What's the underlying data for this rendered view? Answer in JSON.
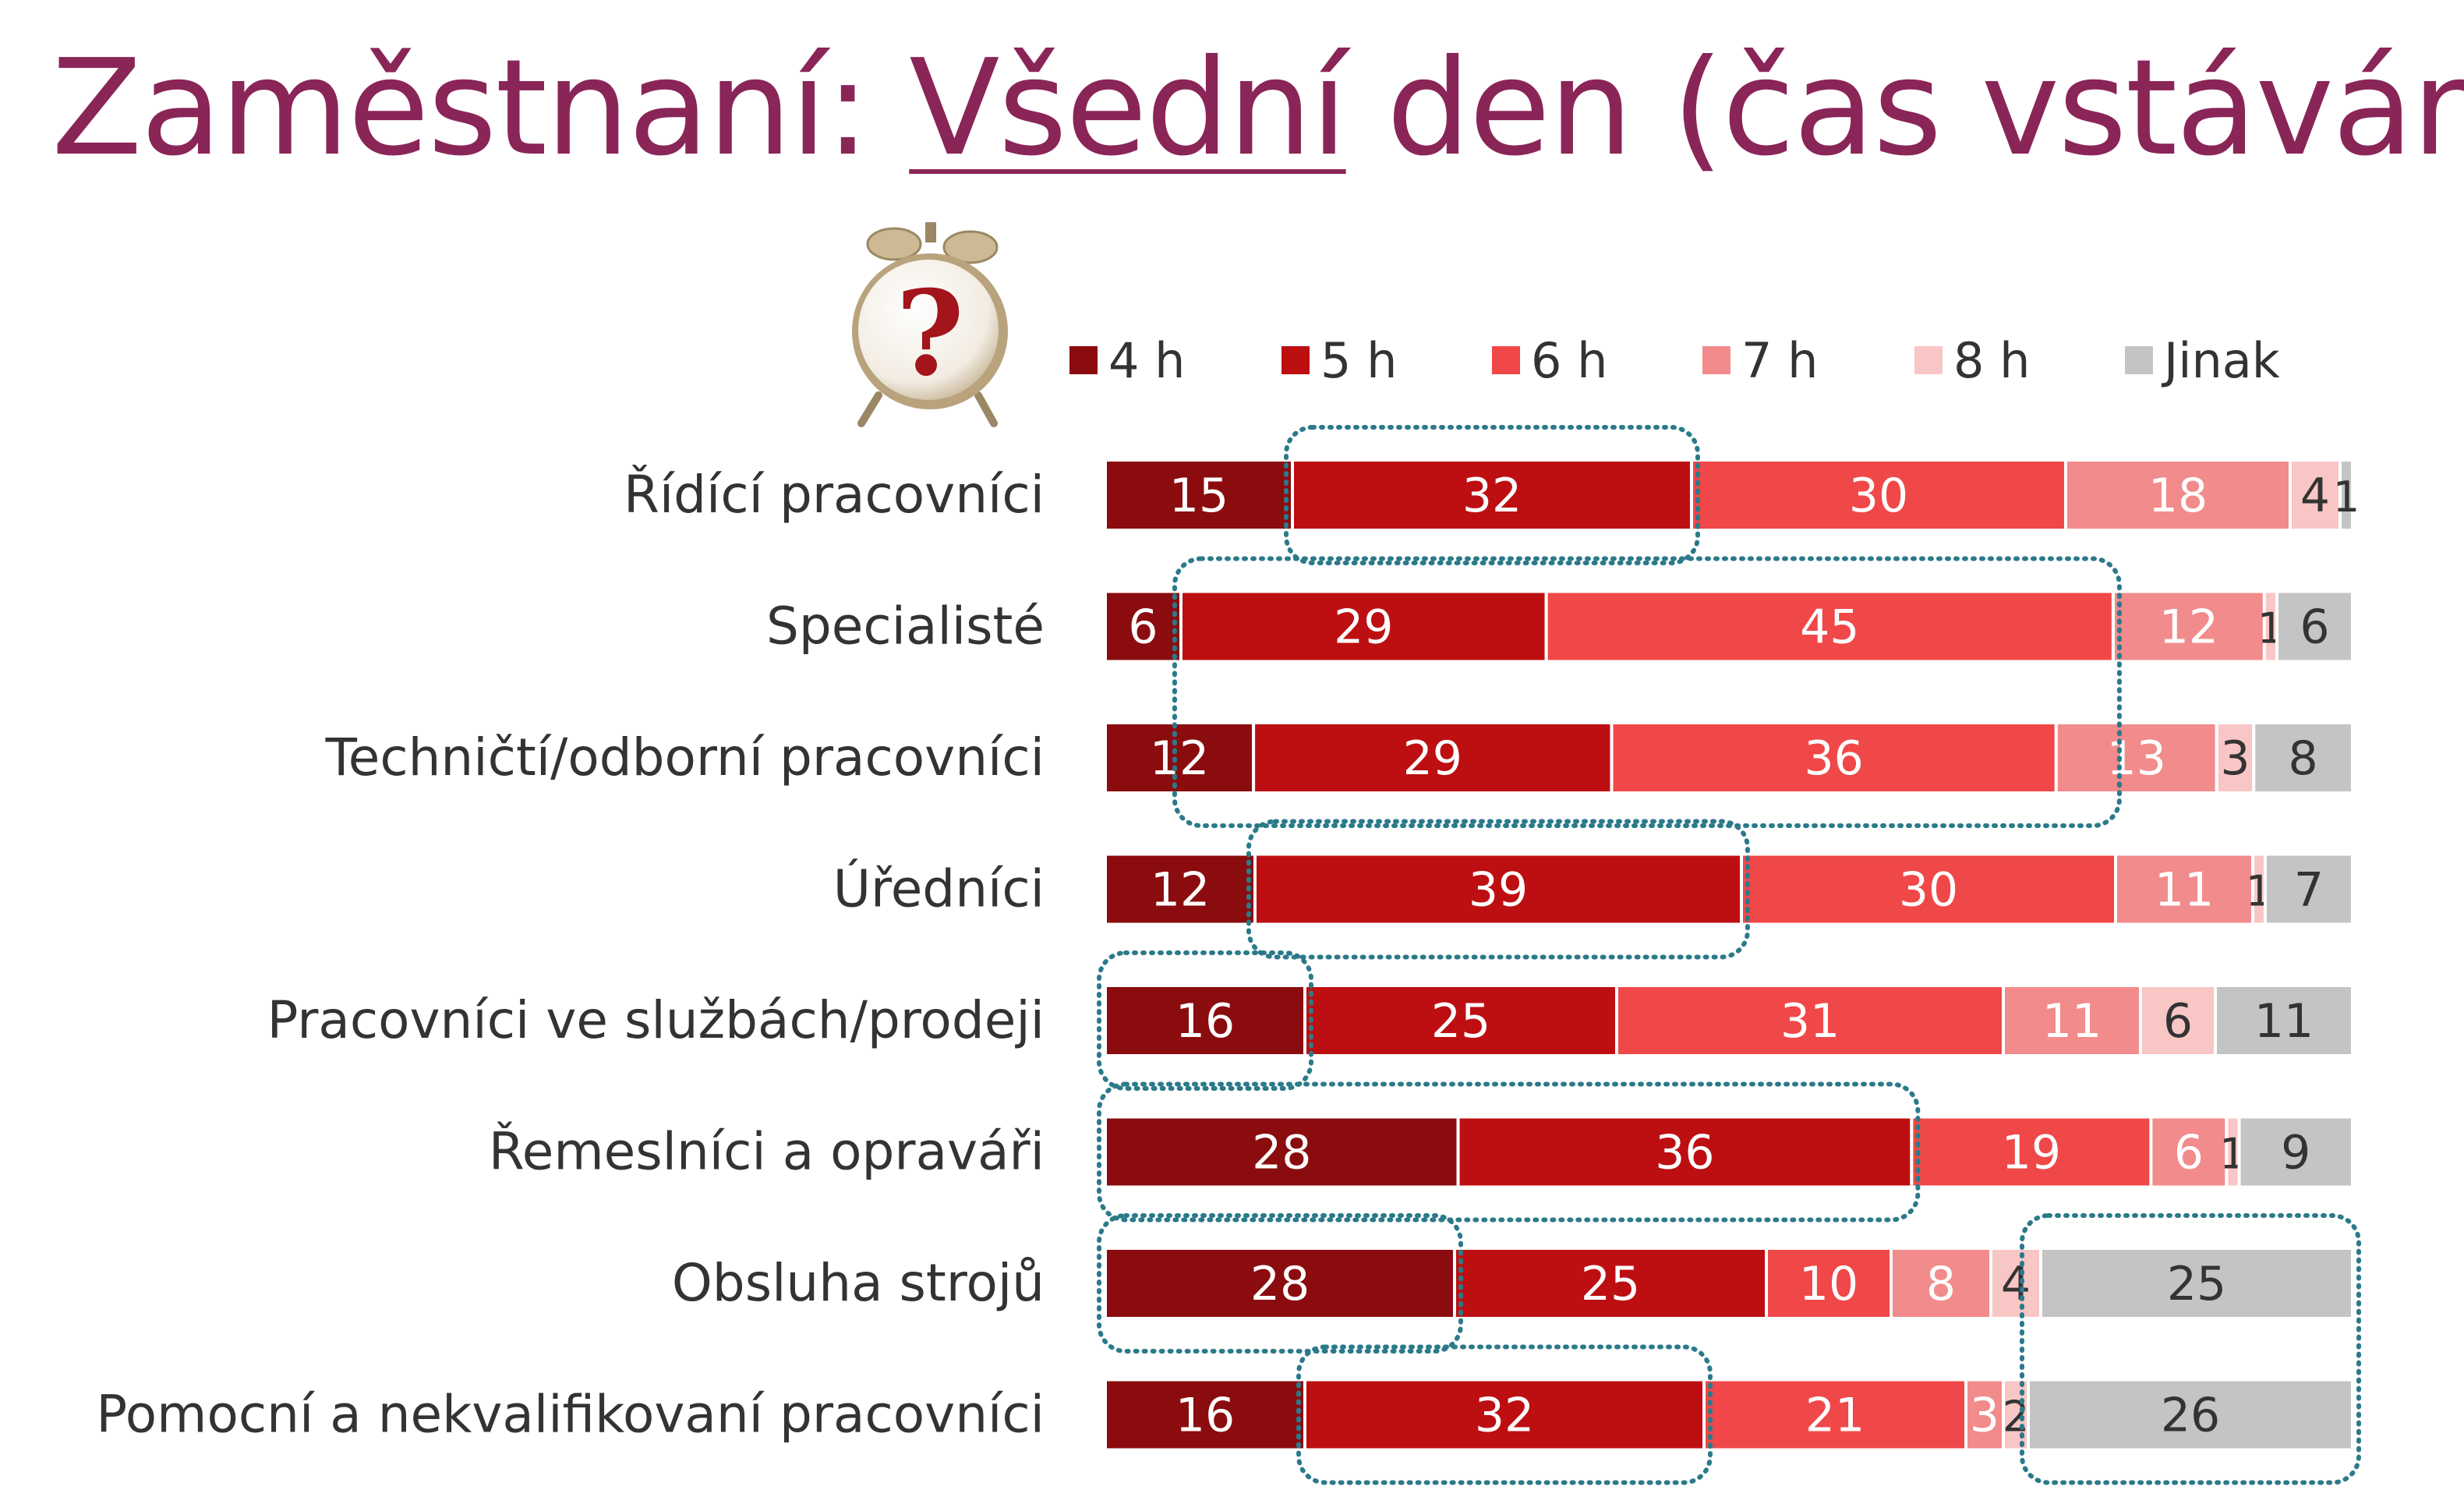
{
  "title": {
    "prefix": "Zaměstnaní: ",
    "underlined": "Všední",
    "suffix": " den (čas vstávání)"
  },
  "clock_icon": {
    "name": "alarm-clock-question-icon",
    "glyph": "?"
  },
  "colors": {
    "title": "#8a2558",
    "series": [
      "#8b0c0e",
      "#bd0f12",
      "#f04848",
      "#f28b8b",
      "#f9c6c6",
      "#c4c4c4"
    ],
    "highlight_outline": "#2b7a8a"
  },
  "chart_data": {
    "type": "bar",
    "orientation": "horizontal",
    "stacked": true,
    "legend_position": "top",
    "categories": [
      "Řídící pracovníci",
      "Specialisté",
      "Techničtí/odborní pracovníci",
      "Úředníci",
      "Pracovníci ve službách/prodeji",
      "Řemeslníci a opraváři",
      "Obsluha strojů",
      "Pomocní a nekvalifikovaní pracovníci"
    ],
    "series": [
      {
        "name": "4 h",
        "values": [
          15,
          6,
          12,
          12,
          16,
          28,
          28,
          16
        ]
      },
      {
        "name": "5 h",
        "values": [
          32,
          29,
          29,
          39,
          25,
          36,
          25,
          32
        ]
      },
      {
        "name": "6 h",
        "values": [
          30,
          45,
          36,
          30,
          31,
          19,
          10,
          21
        ]
      },
      {
        "name": "7 h",
        "values": [
          18,
          12,
          13,
          11,
          11,
          6,
          8,
          3
        ]
      },
      {
        "name": "8 h",
        "values": [
          4,
          1,
          3,
          1,
          6,
          1,
          4,
          2
        ]
      },
      {
        "name": "Jinak",
        "values": [
          1,
          6,
          8,
          7,
          11,
          9,
          25,
          26
        ]
      }
    ],
    "xlim": [
      0,
      100
    ],
    "highlights": [
      {
        "series": [
          1,
          1
        ],
        "rows": [
          0,
          0
        ]
      },
      {
        "series": [
          1,
          2
        ],
        "rows": [
          1,
          2
        ]
      },
      {
        "series": [
          1,
          1
        ],
        "rows": [
          3,
          3
        ]
      },
      {
        "series": [
          0,
          0
        ],
        "rows": [
          4,
          4
        ]
      },
      {
        "series": [
          0,
          1
        ],
        "rows": [
          5,
          5
        ]
      },
      {
        "series": [
          0,
          0
        ],
        "rows": [
          6,
          6
        ]
      },
      {
        "series": [
          1,
          1
        ],
        "rows": [
          7,
          7
        ]
      },
      {
        "series": [
          5,
          5
        ],
        "rows": [
          6,
          7
        ]
      }
    ]
  }
}
